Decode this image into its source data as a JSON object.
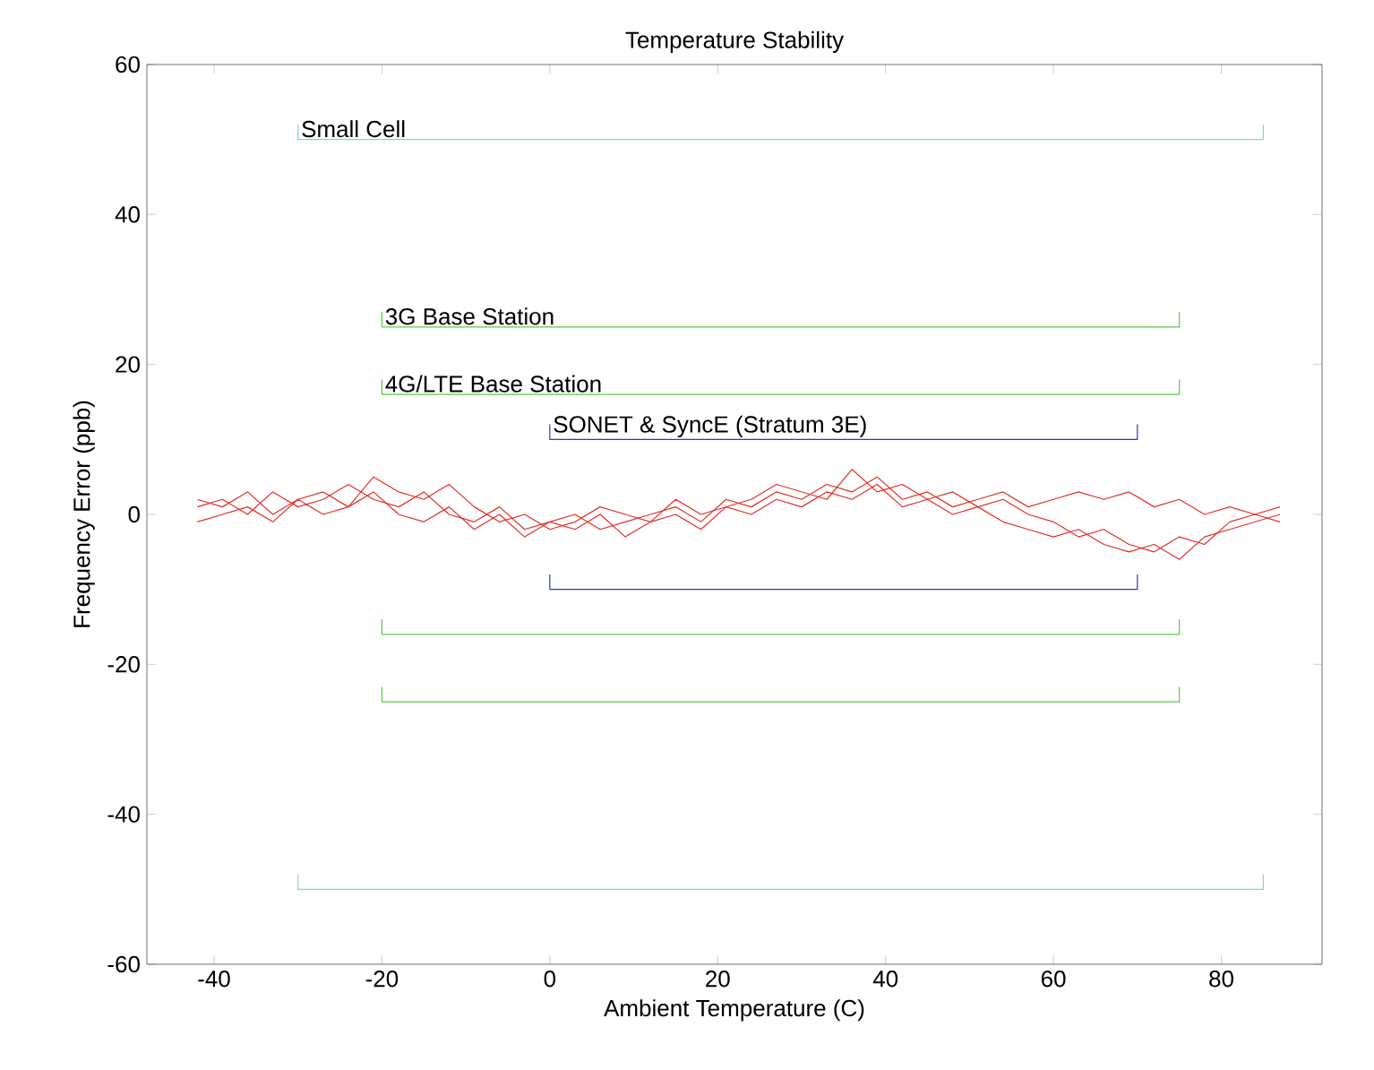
{
  "chart_data": {
    "type": "line",
    "title": "Temperature Stability",
    "xlabel": "Ambient Temperature (C)",
    "ylabel": "Frequency Error (ppb)",
    "xlim": [
      -48,
      92
    ],
    "xticks": [
      -40,
      -20,
      0,
      20,
      40,
      60,
      80
    ],
    "ylim": [
      -60,
      60
    ],
    "yticks": [
      -60,
      -40,
      -20,
      0,
      20,
      40,
      60
    ],
    "grid": false,
    "legend": false,
    "marker": "none",
    "line_style": "solid",
    "x": [
      -42,
      -39,
      -36,
      -33,
      -30,
      -27,
      -24,
      -21,
      -18,
      -15,
      -12,
      -9,
      -6,
      -3,
      0,
      3,
      6,
      9,
      12,
      15,
      18,
      21,
      24,
      27,
      30,
      33,
      36,
      39,
      42,
      45,
      48,
      51,
      54,
      57,
      60,
      63,
      66,
      69,
      72,
      75,
      78,
      81,
      84,
      87
    ],
    "series": [
      {
        "color": "#e0302a",
        "values": [
          1,
          2,
          0,
          3,
          1,
          2,
          4,
          2,
          1,
          3,
          0,
          -1,
          1,
          -2,
          -1,
          0,
          -2,
          -1,
          0,
          1,
          -1,
          2,
          1,
          3,
          2,
          4,
          3,
          5,
          2,
          3,
          1,
          2,
          3,
          1,
          2,
          3,
          2,
          3,
          1,
          2,
          0,
          1,
          0,
          1
        ]
      },
      {
        "color": "#e0302a",
        "values": [
          -1,
          0,
          1,
          -1,
          2,
          0,
          1,
          3,
          0,
          -1,
          1,
          -2,
          0,
          -3,
          -1,
          -2,
          0,
          -3,
          -1,
          0,
          -2,
          1,
          0,
          2,
          1,
          3,
          2,
          4,
          1,
          2,
          0,
          1,
          -1,
          -2,
          -3,
          -2,
          -4,
          -5,
          -4,
          -6,
          -3,
          -2,
          -1,
          0
        ]
      },
      {
        "color": "#e0302a",
        "values": [
          2,
          1,
          3,
          0,
          2,
          3,
          1,
          5,
          3,
          2,
          4,
          1,
          -1,
          0,
          -2,
          -1,
          1,
          0,
          -1,
          2,
          0,
          1,
          2,
          4,
          3,
          2,
          6,
          3,
          4,
          2,
          3,
          1,
          2,
          0,
          -1,
          -3,
          -2,
          -4,
          -5,
          -3,
          -4,
          -1,
          0,
          -1
        ]
      },
      {
        "name": "Small Cell",
        "color": "#7fd8d0",
        "x": [
          -30,
          -30,
          85,
          85,
          null,
          -30,
          -30,
          85,
          85
        ],
        "values": [
          52,
          50,
          50,
          52,
          null,
          -48,
          -50,
          -50,
          -48
        ]
      },
      {
        "name": "3G Base Station",
        "color": "#5cc84a",
        "x": [
          -20,
          -20,
          75,
          75,
          null,
          -20,
          -20,
          75,
          75
        ],
        "values": [
          27,
          25,
          25,
          27,
          null,
          -23,
          -25,
          -25,
          -23
        ]
      },
      {
        "name": "4G/LTE Base Station",
        "color": "#5cc84a",
        "x": [
          -20,
          -20,
          75,
          75,
          null,
          -20,
          -20,
          75,
          75
        ],
        "values": [
          18,
          16,
          16,
          18,
          null,
          -14,
          -16,
          -16,
          -14
        ]
      },
      {
        "name": "SONET & SyncE (Stratum 3E)",
        "color": "#2a3fa0",
        "x": [
          0,
          0,
          70,
          70,
          null,
          0,
          0,
          70,
          70
        ],
        "values": [
          12,
          10,
          10,
          12,
          null,
          -8,
          -10,
          -10,
          -8
        ]
      }
    ]
  }
}
